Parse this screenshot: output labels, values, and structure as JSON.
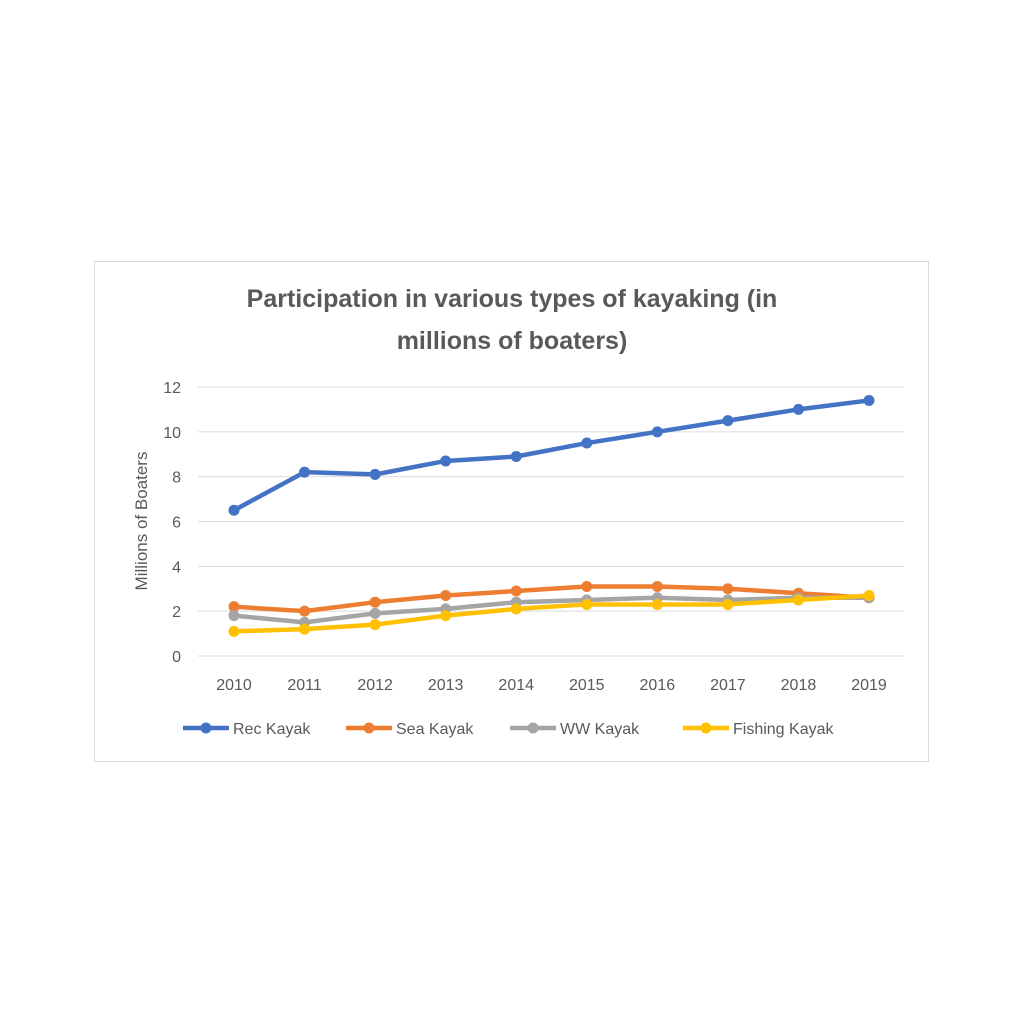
{
  "chart_data": {
    "type": "line",
    "title_line1": "Participation in various types of kayaking (in",
    "title_line2": "millions of boaters)",
    "xlabel": "",
    "ylabel": "Millions of Boaters",
    "x": [
      "2010",
      "2011",
      "2012",
      "2013",
      "2014",
      "2015",
      "2016",
      "2017",
      "2018",
      "2019"
    ],
    "ylim": [
      0,
      12
    ],
    "yticks": [
      "0",
      "2",
      "4",
      "6",
      "8",
      "10",
      "12"
    ],
    "grid": true,
    "legend_position": "bottom",
    "series": [
      {
        "name": "Rec Kayak",
        "color": "#4472c4",
        "values": [
          6.5,
          8.2,
          8.1,
          8.7,
          8.9,
          9.5,
          10.0,
          10.5,
          11.0,
          11.4
        ]
      },
      {
        "name": "Sea Kayak",
        "color": "#ed7d31",
        "values": [
          2.2,
          2.0,
          2.4,
          2.7,
          2.9,
          3.1,
          3.1,
          3.0,
          2.8,
          2.6
        ]
      },
      {
        "name": "WW Kayak",
        "color": "#a5a5a5",
        "values": [
          1.8,
          1.5,
          1.9,
          2.1,
          2.4,
          2.5,
          2.6,
          2.5,
          2.6,
          2.6
        ]
      },
      {
        "name": "Fishing Kayak",
        "color": "#ffc000",
        "values": [
          1.1,
          1.2,
          1.4,
          1.8,
          2.1,
          2.3,
          2.3,
          2.3,
          2.5,
          2.7
        ]
      }
    ]
  }
}
